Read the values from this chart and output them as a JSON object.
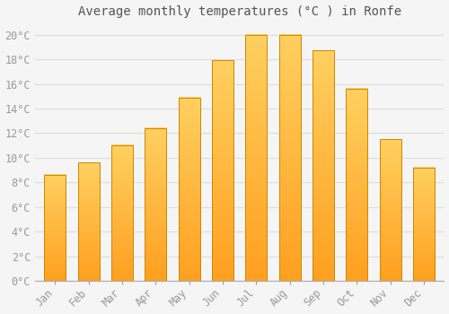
{
  "title": "Average monthly temperatures (°C ) in Ronfe",
  "months": [
    "Jan",
    "Feb",
    "Mar",
    "Apr",
    "May",
    "Jun",
    "Jul",
    "Aug",
    "Sep",
    "Oct",
    "Nov",
    "Dec"
  ],
  "values": [
    8.6,
    9.6,
    11.0,
    12.4,
    14.9,
    17.9,
    20.0,
    20.0,
    18.7,
    15.6,
    11.5,
    9.2
  ],
  "bar_color_top": "#FFD060",
  "bar_color_bottom": "#FFA020",
  "bar_edge_color": "#CC8800",
  "background_color": "#F5F5F5",
  "grid_color": "#DDDDDD",
  "text_color": "#999999",
  "title_color": "#555555",
  "ylim": [
    0,
    21
  ],
  "yticks": [
    0,
    2,
    4,
    6,
    8,
    10,
    12,
    14,
    16,
    18,
    20
  ],
  "title_fontsize": 10,
  "tick_fontsize": 8.5,
  "bar_width": 0.65
}
